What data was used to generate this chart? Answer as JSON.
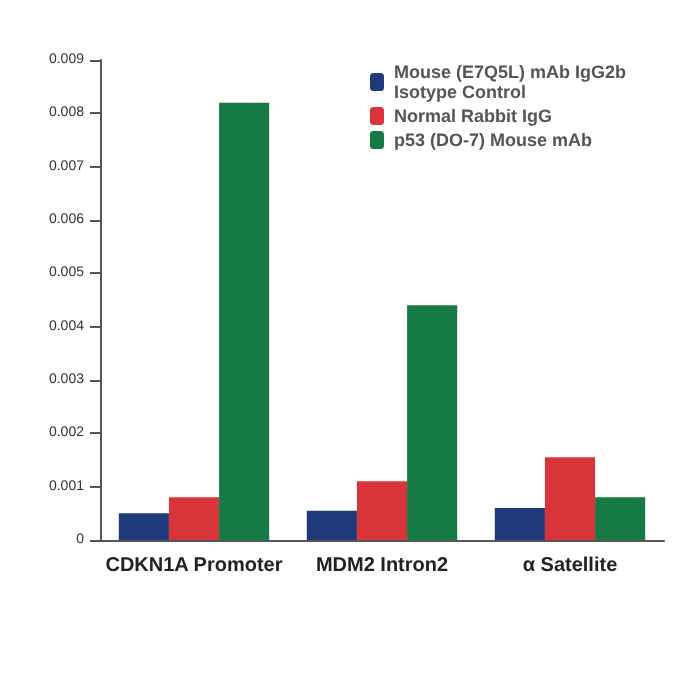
{
  "chart_data": {
    "type": "bar",
    "categories": [
      "CDKN1A Promoter",
      "MDM2 Intron2",
      "α Satellite"
    ],
    "series": [
      {
        "name": "Mouse (E7Q5L) mAb IgG2b Isotype Control",
        "color": "#1f3a7a",
        "values": [
          0.0005,
          0.00055,
          0.0006
        ]
      },
      {
        "name": "Normal Rabbit IgG",
        "color": "#d9343a",
        "values": [
          0.0008,
          0.0011,
          0.00155
        ]
      },
      {
        "name": "p53 (DO-7) Mouse mAb",
        "color": "#167a45",
        "values": [
          0.0082,
          0.0044,
          0.0008
        ]
      }
    ],
    "ylim": [
      0,
      0.009
    ],
    "yticks": [
      0,
      0.001,
      0.002,
      0.003,
      0.004,
      0.005,
      0.006,
      0.007,
      0.008,
      0.009
    ],
    "grid": false,
    "legend": "top right"
  }
}
